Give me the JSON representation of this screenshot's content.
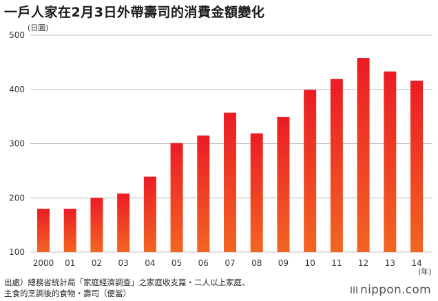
{
  "title": "一戶人家在2月3日外帶壽司的消費金額變化",
  "chart_data": {
    "type": "bar",
    "title": "一戶人家在2月3日外帶壽司的消費金額變化",
    "ylabel": "(日圓)",
    "xlabel": "(年)",
    "categories": [
      "2000",
      "01",
      "02",
      "03",
      "04",
      "05",
      "06",
      "07",
      "08",
      "09",
      "10",
      "11",
      "12",
      "13",
      "14"
    ],
    "values": [
      180,
      180,
      200,
      208,
      239,
      301,
      315,
      357,
      319,
      349,
      399,
      419,
      458,
      433,
      416
    ],
    "ylim": [
      100,
      500
    ],
    "yticks": [
      "100",
      "200",
      "300",
      "400",
      "500"
    ],
    "grid": true,
    "colors": {
      "top": "#ec1c24",
      "bottom": "#f26522",
      "grid": "#bdbdbd"
    }
  },
  "source": {
    "line1": "出處）總務省統計局「家庭經濟調查」之家庭收支篇・二人以上家庭、",
    "line2": "主食的烹調後的食物・壽司（便當）"
  },
  "brand": "nippon.com"
}
